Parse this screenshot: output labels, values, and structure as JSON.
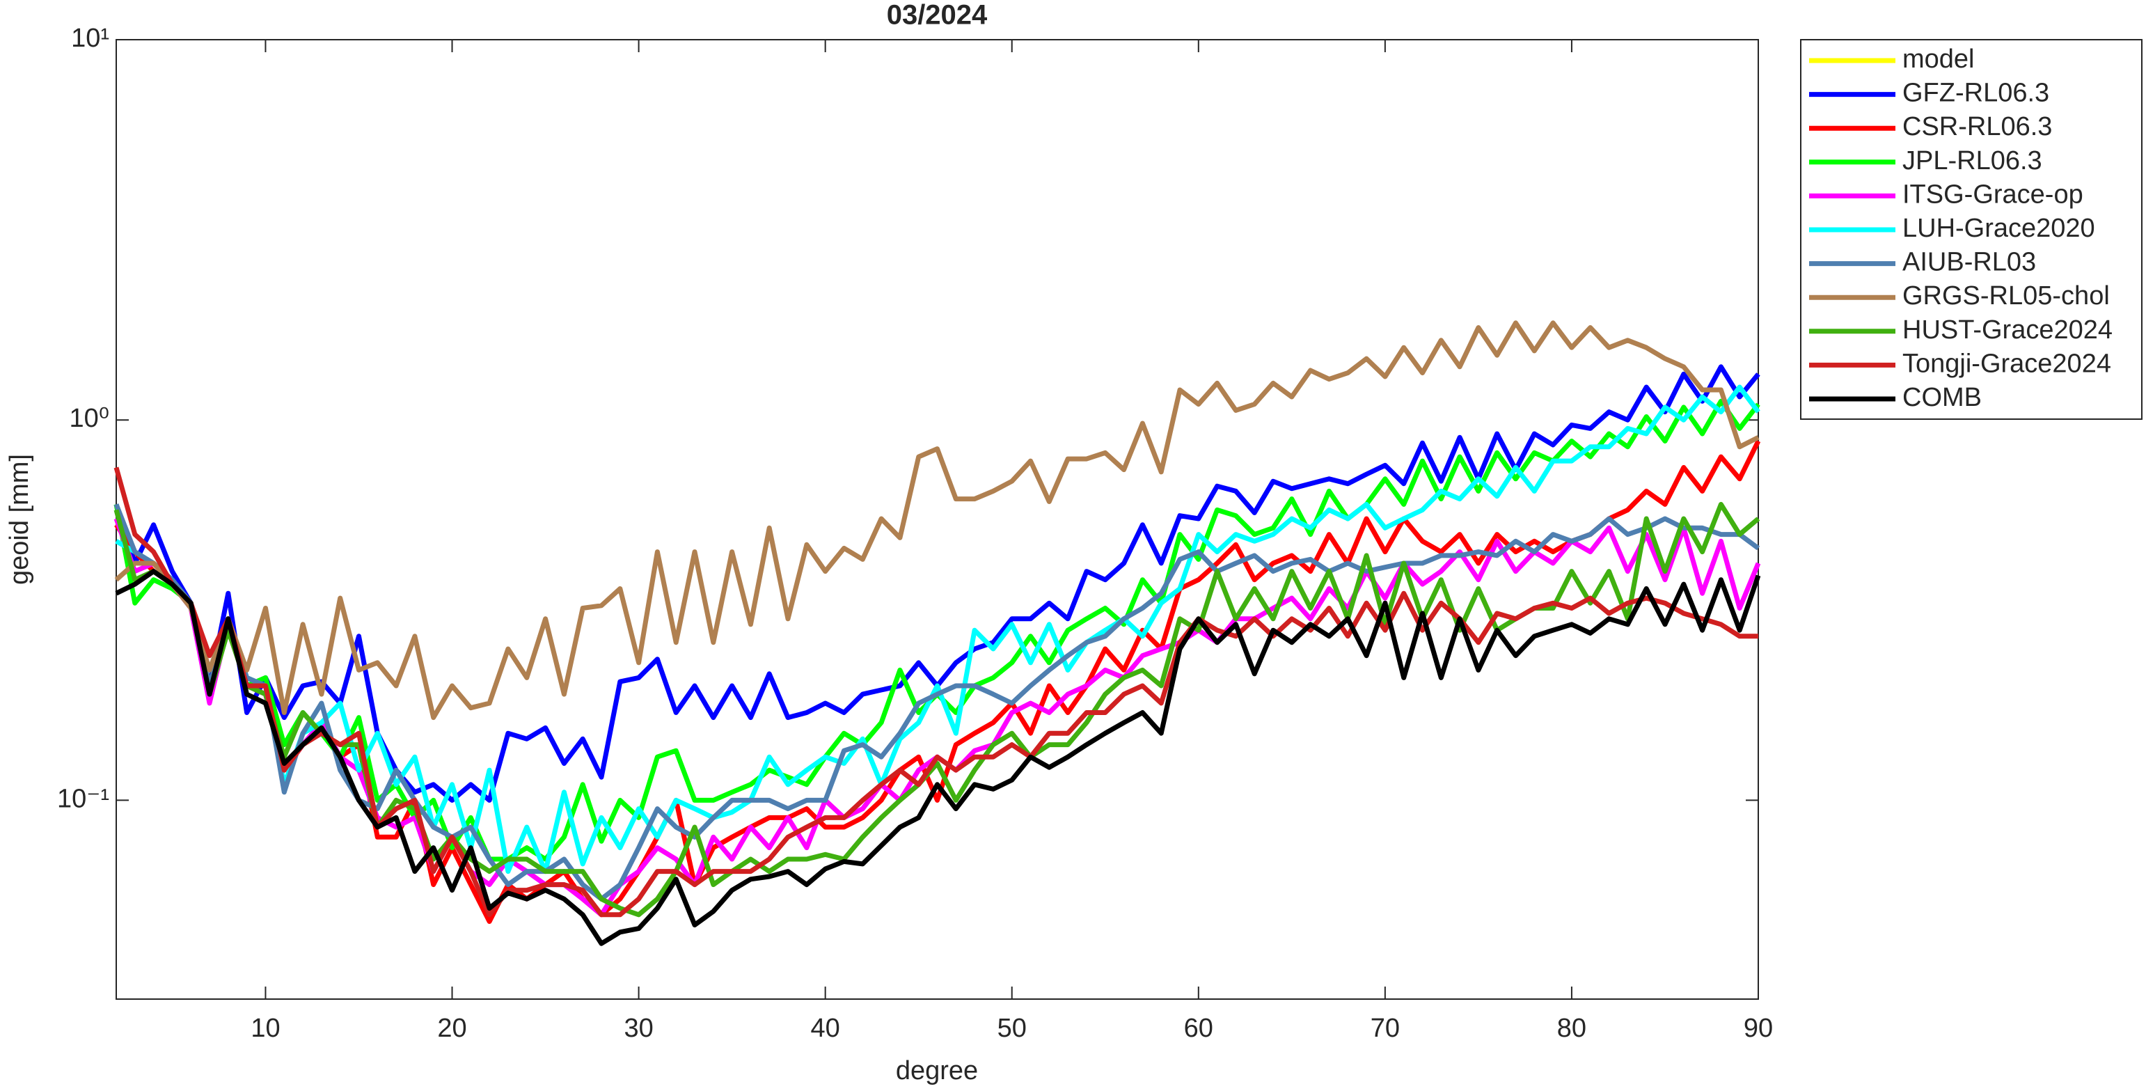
{
  "chart_data": {
    "type": "line",
    "title": "03/2024",
    "xlabel": "degree",
    "ylabel": "geoid [mm]",
    "xlim": [
      2,
      90
    ],
    "xticks": [
      10,
      20,
      30,
      40,
      50,
      60,
      70,
      80,
      90
    ],
    "ylim": [
      0.03,
      10
    ],
    "ylog": true,
    "yticks": [
      {
        "value": 0.1,
        "label": "10⁻¹"
      },
      {
        "value": 1,
        "label": "10⁰"
      },
      {
        "value": 10,
        "label": "10¹"
      }
    ],
    "legend": "outside-right",
    "x": [
      2,
      3,
      4,
      5,
      6,
      7,
      8,
      9,
      10,
      11,
      12,
      13,
      14,
      15,
      16,
      17,
      18,
      19,
      20,
      21,
      22,
      23,
      24,
      25,
      26,
      27,
      28,
      29,
      30,
      31,
      32,
      33,
      34,
      35,
      36,
      37,
      38,
      39,
      40,
      41,
      42,
      43,
      44,
      45,
      46,
      47,
      48,
      49,
      50,
      51,
      52,
      53,
      54,
      55,
      56,
      57,
      58,
      59,
      60,
      61,
      62,
      63,
      64,
      65,
      66,
      67,
      68,
      69,
      70,
      71,
      72,
      73,
      74,
      75,
      76,
      77,
      78,
      79,
      80,
      81,
      82,
      83,
      84,
      85,
      86,
      87,
      88,
      89,
      90
    ],
    "series": [
      {
        "name": "model",
        "color": "#ffff00",
        "values": [
          null,
          null,
          null,
          null,
          null,
          null,
          null,
          null,
          null,
          null,
          null,
          null,
          null,
          null,
          null,
          null,
          null,
          null,
          null,
          null,
          null,
          null,
          null,
          null,
          null,
          null,
          null,
          null,
          null,
          null,
          null,
          null,
          null,
          null,
          null,
          null,
          null,
          null,
          null,
          null,
          null,
          null,
          null,
          null,
          null,
          null,
          null,
          null,
          null,
          null,
          null,
          null,
          null,
          null,
          null,
          null,
          null,
          null,
          null,
          null,
          null,
          null,
          null,
          null,
          null,
          null,
          null,
          null,
          null,
          null,
          null,
          null,
          null,
          null,
          null,
          null,
          null,
          null,
          null,
          null,
          null,
          null,
          null,
          null,
          null,
          null,
          null,
          null,
          null
        ]
      },
      {
        "name": "GFZ-RL06.3",
        "color": "#0000ff",
        "values": [
          0.6,
          0.42,
          0.53,
          0.4,
          0.33,
          0.2,
          0.35,
          0.17,
          0.21,
          0.165,
          0.2,
          0.205,
          0.18,
          0.27,
          0.15,
          0.12,
          0.105,
          0.11,
          0.1,
          0.11,
          0.1,
          0.15,
          0.145,
          0.155,
          0.125,
          0.145,
          0.115,
          0.205,
          0.21,
          0.235,
          0.17,
          0.2,
          0.165,
          0.2,
          0.165,
          0.215,
          0.165,
          0.17,
          0.18,
          0.17,
          0.19,
          0.195,
          0.2,
          0.23,
          0.2,
          0.23,
          0.25,
          0.26,
          0.3,
          0.3,
          0.33,
          0.3,
          0.4,
          0.38,
          0.42,
          0.53,
          0.42,
          0.56,
          0.55,
          0.67,
          0.65,
          0.57,
          0.69,
          0.66,
          0.68,
          0.7,
          0.68,
          0.72,
          0.76,
          0.68,
          0.87,
          0.69,
          0.9,
          0.7,
          0.92,
          0.74,
          0.92,
          0.86,
          0.97,
          0.95,
          1.05,
          1.0,
          1.22,
          1.05,
          1.32,
          1.12,
          1.38,
          1.15,
          1.32
        ]
      },
      {
        "name": "CSR-RL06.3",
        "color": "#ff0000",
        "values": [
          0.53,
          0.45,
          0.4,
          0.37,
          0.33,
          0.2,
          0.3,
          0.2,
          0.19,
          0.12,
          0.14,
          0.16,
          0.13,
          0.14,
          0.08,
          0.08,
          0.1,
          0.06,
          0.075,
          0.06,
          0.048,
          0.06,
          0.055,
          0.06,
          0.065,
          0.055,
          0.05,
          0.055,
          0.065,
          0.08,
          0.1,
          0.06,
          0.075,
          0.08,
          0.085,
          0.09,
          0.09,
          0.095,
          0.085,
          0.085,
          0.09,
          0.1,
          0.12,
          0.13,
          0.1,
          0.14,
          0.15,
          0.16,
          0.18,
          0.15,
          0.2,
          0.17,
          0.2,
          0.25,
          0.22,
          0.28,
          0.25,
          0.36,
          0.38,
          0.42,
          0.47,
          0.38,
          0.42,
          0.44,
          0.4,
          0.5,
          0.42,
          0.55,
          0.45,
          0.55,
          0.48,
          0.45,
          0.5,
          0.42,
          0.5,
          0.45,
          0.48,
          0.45,
          0.48,
          0.5,
          0.55,
          0.58,
          0.65,
          0.6,
          0.75,
          0.65,
          0.8,
          0.7,
          0.88
        ]
      },
      {
        "name": "JPL-RL06.3",
        "color": "#00ff00",
        "values": [
          0.6,
          0.33,
          0.38,
          0.36,
          0.33,
          0.2,
          0.3,
          0.2,
          0.21,
          0.14,
          0.17,
          0.15,
          0.13,
          0.165,
          0.1,
          0.11,
          0.09,
          0.1,
          0.075,
          0.09,
          0.07,
          0.07,
          0.075,
          0.07,
          0.08,
          0.11,
          0.078,
          0.1,
          0.09,
          0.13,
          0.135,
          0.1,
          0.1,
          0.105,
          0.11,
          0.12,
          0.115,
          0.11,
          0.13,
          0.15,
          0.14,
          0.16,
          0.22,
          0.17,
          0.19,
          0.17,
          0.2,
          0.21,
          0.23,
          0.27,
          0.23,
          0.28,
          0.3,
          0.32,
          0.29,
          0.38,
          0.33,
          0.5,
          0.43,
          0.58,
          0.56,
          0.5,
          0.52,
          0.62,
          0.5,
          0.65,
          0.55,
          0.6,
          0.7,
          0.6,
          0.78,
          0.62,
          0.8,
          0.65,
          0.82,
          0.7,
          0.82,
          0.78,
          0.88,
          0.8,
          0.92,
          0.85,
          1.02,
          0.88,
          1.08,
          0.92,
          1.12,
          0.95,
          1.1
        ]
      },
      {
        "name": "ITSG-Grace-op",
        "color": "#ff00ff",
        "values": [
          0.55,
          0.4,
          0.42,
          0.37,
          0.32,
          0.18,
          0.29,
          0.2,
          0.19,
          0.12,
          0.14,
          0.16,
          0.13,
          0.12,
          0.09,
          0.085,
          0.09,
          0.065,
          0.08,
          0.065,
          0.06,
          0.07,
          0.065,
          0.06,
          0.06,
          0.055,
          0.05,
          0.06,
          0.065,
          0.075,
          0.07,
          0.06,
          0.08,
          0.07,
          0.085,
          0.075,
          0.09,
          0.075,
          0.1,
          0.09,
          0.095,
          0.11,
          0.1,
          0.12,
          0.13,
          0.12,
          0.135,
          0.14,
          0.17,
          0.18,
          0.17,
          0.19,
          0.2,
          0.22,
          0.21,
          0.24,
          0.25,
          0.26,
          0.28,
          0.26,
          0.3,
          0.3,
          0.32,
          0.34,
          0.3,
          0.36,
          0.32,
          0.4,
          0.34,
          0.42,
          0.37,
          0.4,
          0.45,
          0.38,
          0.48,
          0.4,
          0.45,
          0.42,
          0.48,
          0.45,
          0.52,
          0.4,
          0.5,
          0.38,
          0.52,
          0.35,
          0.48,
          0.32,
          0.42
        ]
      },
      {
        "name": "LUH-Grace2020",
        "color": "#00ffff",
        "values": [
          0.48,
          0.45,
          0.42,
          0.38,
          0.33,
          0.19,
          0.3,
          0.21,
          0.2,
          0.11,
          0.15,
          0.16,
          0.18,
          0.12,
          0.15,
          0.11,
          0.13,
          0.085,
          0.11,
          0.075,
          0.12,
          0.065,
          0.085,
          0.065,
          0.105,
          0.068,
          0.09,
          0.075,
          0.095,
          0.08,
          0.1,
          0.095,
          0.09,
          0.093,
          0.1,
          0.13,
          0.11,
          0.12,
          0.13,
          0.125,
          0.145,
          0.11,
          0.145,
          0.16,
          0.2,
          0.15,
          0.28,
          0.25,
          0.29,
          0.23,
          0.29,
          0.22,
          0.26,
          0.28,
          0.3,
          0.27,
          0.33,
          0.36,
          0.5,
          0.45,
          0.5,
          0.48,
          0.5,
          0.55,
          0.52,
          0.58,
          0.55,
          0.6,
          0.52,
          0.55,
          0.58,
          0.65,
          0.62,
          0.7,
          0.63,
          0.75,
          0.65,
          0.78,
          0.78,
          0.85,
          0.85,
          0.95,
          0.92,
          1.08,
          1.0,
          1.15,
          1.05,
          1.22,
          1.05
        ]
      },
      {
        "name": "AIUB-RL03",
        "color": "#4f7fb0",
        "values": [
          0.6,
          0.45,
          0.42,
          0.38,
          0.33,
          0.2,
          0.3,
          0.21,
          0.2,
          0.105,
          0.15,
          0.18,
          0.12,
          0.1,
          0.095,
          0.12,
          0.1,
          0.085,
          0.08,
          0.085,
          0.07,
          0.06,
          0.065,
          0.065,
          0.07,
          0.06,
          0.055,
          0.06,
          0.075,
          0.095,
          0.085,
          0.08,
          0.09,
          0.1,
          0.1,
          0.1,
          0.095,
          0.1,
          0.1,
          0.135,
          0.14,
          0.13,
          0.15,
          0.18,
          0.19,
          0.2,
          0.2,
          0.19,
          0.18,
          0.2,
          0.22,
          0.24,
          0.26,
          0.27,
          0.3,
          0.32,
          0.35,
          0.43,
          0.45,
          0.4,
          0.42,
          0.44,
          0.4,
          0.42,
          0.43,
          0.4,
          0.42,
          0.4,
          0.41,
          0.42,
          0.42,
          0.44,
          0.44,
          0.45,
          0.44,
          0.48,
          0.45,
          0.5,
          0.48,
          0.5,
          0.55,
          0.5,
          0.52,
          0.55,
          0.52,
          0.52,
          0.5,
          0.5,
          0.46
        ]
      },
      {
        "name": "GRGS-RL05-chol",
        "color": "#b08050",
        "values": [
          0.38,
          0.42,
          0.42,
          0.37,
          0.32,
          0.22,
          0.3,
          0.22,
          0.32,
          0.17,
          0.29,
          0.19,
          0.34,
          0.22,
          0.23,
          0.2,
          0.27,
          0.165,
          0.2,
          0.175,
          0.18,
          0.25,
          0.21,
          0.3,
          0.19,
          0.32,
          0.325,
          0.36,
          0.23,
          0.45,
          0.26,
          0.45,
          0.26,
          0.45,
          0.29,
          0.52,
          0.3,
          0.47,
          0.4,
          0.46,
          0.43,
          0.55,
          0.49,
          0.8,
          0.84,
          0.62,
          0.62,
          0.65,
          0.69,
          0.78,
          0.61,
          0.79,
          0.79,
          0.82,
          0.74,
          0.98,
          0.73,
          1.2,
          1.1,
          1.25,
          1.06,
          1.1,
          1.25,
          1.15,
          1.35,
          1.28,
          1.33,
          1.45,
          1.3,
          1.55,
          1.33,
          1.62,
          1.38,
          1.75,
          1.48,
          1.8,
          1.52,
          1.8,
          1.55,
          1.75,
          1.55,
          1.62,
          1.55,
          1.45,
          1.38,
          1.2,
          1.2,
          0.85,
          0.9
        ]
      },
      {
        "name": "HUST-Grace2024",
        "color": "#40b010",
        "values": [
          0.58,
          0.38,
          0.4,
          0.37,
          0.33,
          0.19,
          0.28,
          0.2,
          0.19,
          0.13,
          0.17,
          0.15,
          0.14,
          0.14,
          0.085,
          0.1,
          0.095,
          0.07,
          0.08,
          0.07,
          0.065,
          0.07,
          0.07,
          0.065,
          0.065,
          0.065,
          0.055,
          0.052,
          0.05,
          0.055,
          0.065,
          0.085,
          0.06,
          0.065,
          0.07,
          0.065,
          0.07,
          0.07,
          0.072,
          0.07,
          0.08,
          0.09,
          0.1,
          0.11,
          0.125,
          0.1,
          0.12,
          0.14,
          0.15,
          0.13,
          0.14,
          0.14,
          0.16,
          0.19,
          0.21,
          0.22,
          0.2,
          0.3,
          0.28,
          0.4,
          0.3,
          0.36,
          0.3,
          0.4,
          0.32,
          0.4,
          0.3,
          0.44,
          0.29,
          0.42,
          0.3,
          0.38,
          0.28,
          0.36,
          0.28,
          0.3,
          0.32,
          0.32,
          0.4,
          0.33,
          0.4,
          0.3,
          0.55,
          0.4,
          0.55,
          0.45,
          0.6,
          0.5,
          0.55
        ]
      },
      {
        "name": "Tongji-Grace2024",
        "color": "#d02020",
        "values": [
          0.75,
          0.5,
          0.45,
          0.37,
          0.33,
          0.24,
          0.3,
          0.2,
          0.2,
          0.12,
          0.14,
          0.15,
          0.14,
          0.15,
          0.085,
          0.095,
          0.1,
          0.065,
          0.08,
          0.065,
          0.05,
          0.058,
          0.058,
          0.06,
          0.06,
          0.058,
          0.05,
          0.05,
          0.055,
          0.065,
          0.065,
          0.06,
          0.065,
          0.065,
          0.065,
          0.07,
          0.08,
          0.085,
          0.09,
          0.09,
          0.1,
          0.11,
          0.12,
          0.11,
          0.13,
          0.12,
          0.13,
          0.13,
          0.14,
          0.13,
          0.15,
          0.15,
          0.17,
          0.17,
          0.19,
          0.2,
          0.18,
          0.26,
          0.3,
          0.28,
          0.27,
          0.3,
          0.27,
          0.3,
          0.28,
          0.32,
          0.27,
          0.33,
          0.28,
          0.35,
          0.28,
          0.33,
          0.3,
          0.26,
          0.31,
          0.3,
          0.32,
          0.33,
          0.32,
          0.34,
          0.31,
          0.33,
          0.34,
          0.33,
          0.31,
          0.3,
          0.29,
          0.27,
          0.27
        ]
      },
      {
        "name": "COMB",
        "color": "#000000",
        "values": [
          0.35,
          0.37,
          0.4,
          0.37,
          0.33,
          0.19,
          0.3,
          0.19,
          0.18,
          0.125,
          0.14,
          0.155,
          0.13,
          0.1,
          0.085,
          0.09,
          0.065,
          0.075,
          0.058,
          0.075,
          0.052,
          0.057,
          0.055,
          0.058,
          0.055,
          0.05,
          0.042,
          0.045,
          0.046,
          0.052,
          0.062,
          0.047,
          0.051,
          0.058,
          0.062,
          0.063,
          0.065,
          0.06,
          0.066,
          0.069,
          0.068,
          0.076,
          0.085,
          0.09,
          0.11,
          0.095,
          0.11,
          0.107,
          0.113,
          0.13,
          0.122,
          0.13,
          0.14,
          0.15,
          0.16,
          0.17,
          0.15,
          0.25,
          0.3,
          0.26,
          0.29,
          0.215,
          0.28,
          0.26,
          0.29,
          0.27,
          0.3,
          0.24,
          0.33,
          0.21,
          0.31,
          0.21,
          0.3,
          0.22,
          0.28,
          0.24,
          0.27,
          0.28,
          0.29,
          0.275,
          0.3,
          0.29,
          0.36,
          0.29,
          0.37,
          0.28,
          0.38,
          0.28,
          0.39
        ]
      }
    ]
  }
}
